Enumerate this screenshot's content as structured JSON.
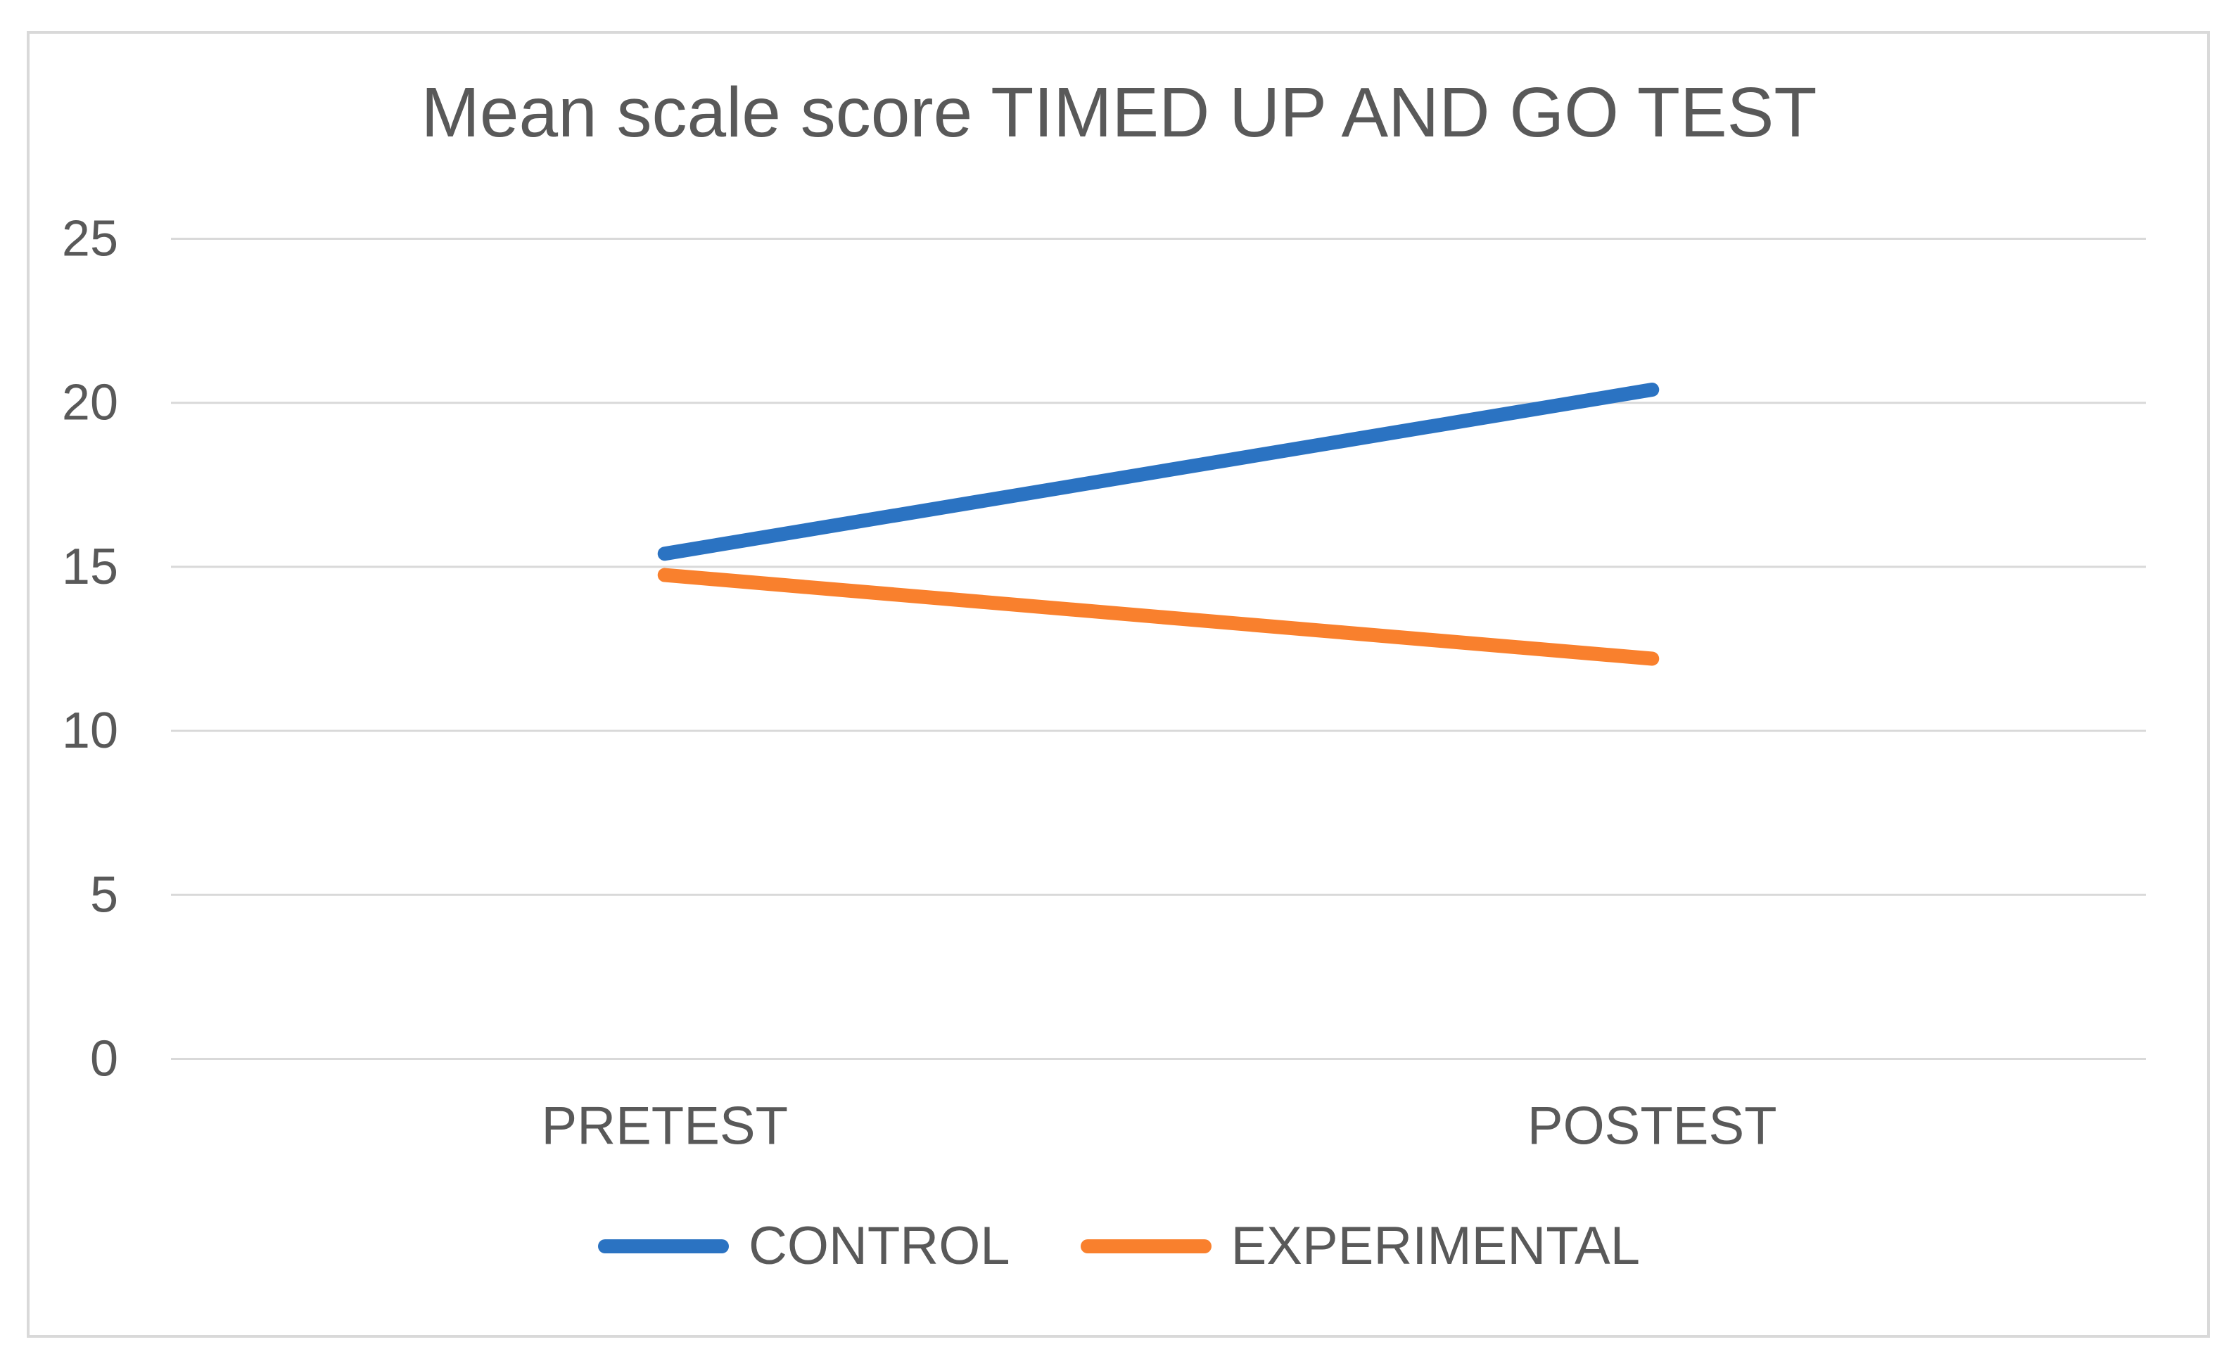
{
  "chart_data": {
    "type": "line",
    "title": "Mean scale score TIMED UP AND GO TEST",
    "categories": [
      "PRETEST",
      "POSTEST"
    ],
    "series": [
      {
        "name": "CONTROL",
        "color": "#2B73C2",
        "values": [
          15.4,
          20.4
        ]
      },
      {
        "name": "EXPERIMENTAL",
        "color": "#F9802D",
        "values": [
          14.75,
          12.2
        ]
      }
    ],
    "xlabel": "",
    "ylabel": "",
    "ylim": [
      0,
      25
    ],
    "yticks": [
      0,
      5,
      10,
      15,
      20,
      25
    ],
    "grid": true,
    "legend_position": "bottom"
  },
  "styles": {
    "text_color": "#595959",
    "gridline_color": "#D9D9D9",
    "frame_border_color": "#D9D9D9",
    "background_color": "#FFFFFF"
  }
}
